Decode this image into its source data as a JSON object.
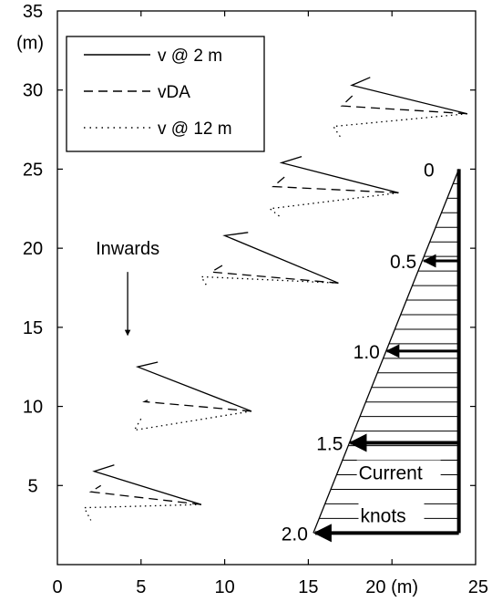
{
  "chart_data": {
    "type": "line",
    "title": "",
    "xlabel": "",
    "ylabel": "",
    "xlim": [
      0,
      25
    ],
    "ylim": [
      0,
      35
    ],
    "x_ticks": [
      {
        "value": 0,
        "label": "0"
      },
      {
        "value": 5,
        "label": "5"
      },
      {
        "value": 10,
        "label": "10"
      },
      {
        "value": 15,
        "label": "15"
      },
      {
        "value": 20,
        "label": "20 (m)"
      },
      {
        "value": 25,
        "label": "25"
      }
    ],
    "y_ticks": [
      {
        "value": 5,
        "label": "5"
      },
      {
        "value": 10,
        "label": "10"
      },
      {
        "value": 15,
        "label": "15"
      },
      {
        "value": 20,
        "label": "20"
      },
      {
        "value": 25,
        "label": "25"
      },
      {
        "value": 30,
        "label": "30"
      },
      {
        "value": 35,
        "label": "35"
      }
    ],
    "y_unit_label": "(m)",
    "legend": {
      "position": "top-left",
      "entries": [
        {
          "label": "v @ 2 m",
          "style": "solid"
        },
        {
          "label": "vDA",
          "style": "dashed"
        },
        {
          "label": "v @ 12 m",
          "style": "dotted"
        }
      ]
    },
    "series": [
      {
        "style": "solid",
        "points": [
          [
            [
              8.6,
              3.8
            ],
            [
              2.2,
              5.9
            ],
            [
              3.4,
              6.3
            ]
          ],
          [
            [
              11.6,
              9.7
            ],
            [
              4.8,
              12.5
            ],
            [
              6.0,
              12.8
            ]
          ],
          [
            [
              16.8,
              17.8
            ],
            [
              10.0,
              20.8
            ],
            [
              11.4,
              21.0
            ]
          ],
          [
            [
              20.4,
              23.5
            ],
            [
              13.4,
              25.4
            ],
            [
              14.6,
              25.8
            ]
          ],
          [
            [
              24.5,
              28.5
            ],
            [
              17.6,
              30.3
            ],
            [
              18.7,
              30.8
            ]
          ]
        ]
      },
      {
        "style": "dashed",
        "points": [
          [
            [
              8.6,
              3.8
            ],
            [
              2.0,
              4.6
            ],
            [
              2.6,
              5.0
            ]
          ],
          [
            [
              11.6,
              9.7
            ],
            [
              5.2,
              10.3
            ],
            [
              5.6,
              10.5
            ]
          ],
          [
            [
              16.8,
              17.8
            ],
            [
              9.2,
              18.5
            ],
            [
              10.0,
              19.0
            ]
          ],
          [
            [
              20.4,
              23.5
            ],
            [
              12.9,
              23.9
            ],
            [
              13.8,
              24.7
            ]
          ],
          [
            [
              24.5,
              28.5
            ],
            [
              17.0,
              29.0
            ],
            [
              17.8,
              29.8
            ]
          ]
        ]
      },
      {
        "style": "dotted",
        "points": [
          [
            [
              8.6,
              3.8
            ],
            [
              1.6,
              3.6
            ],
            [
              2.0,
              2.8
            ]
          ],
          [
            [
              11.6,
              9.7
            ],
            [
              4.6,
              8.5
            ],
            [
              5.1,
              9.4
            ]
          ],
          [
            [
              16.8,
              17.8
            ],
            [
              8.6,
              18.2
            ],
            [
              9.0,
              17.5
            ]
          ],
          [
            [
              20.4,
              23.5
            ],
            [
              12.7,
              22.5
            ],
            [
              13.3,
              22.0
            ]
          ],
          [
            [
              24.5,
              28.5
            ],
            [
              16.5,
              27.7
            ],
            [
              17.0,
              26.9
            ]
          ]
        ]
      }
    ],
    "annotations": {
      "inwards": {
        "text": "Inwards",
        "at": [
          4.2,
          20.0
        ],
        "arrow_from": [
          4.2,
          18.5
        ],
        "arrow_to": [
          4.2,
          14.5
        ]
      },
      "current_profile": {
        "top": [
          24.0,
          25.0
        ],
        "bottom": [
          24.0,
          2.0
        ],
        "slant_end": [
          15.3,
          2.0
        ],
        "hatch_count": 25,
        "arrows": [
          {
            "label": "0",
            "y": 25.0,
            "x_tip": 24.0
          },
          {
            "label": "0.5",
            "y": 19.2,
            "x_tip": 21.8
          },
          {
            "label": "1.0",
            "y": 13.5,
            "x_tip": 19.6
          },
          {
            "label": "1.5",
            "y": 7.7,
            "x_tip": 17.4
          },
          {
            "label": "2.0",
            "y": 2.0,
            "x_tip": 15.3
          }
        ],
        "caption_line1": "Current",
        "caption_line2": "knots"
      }
    }
  }
}
